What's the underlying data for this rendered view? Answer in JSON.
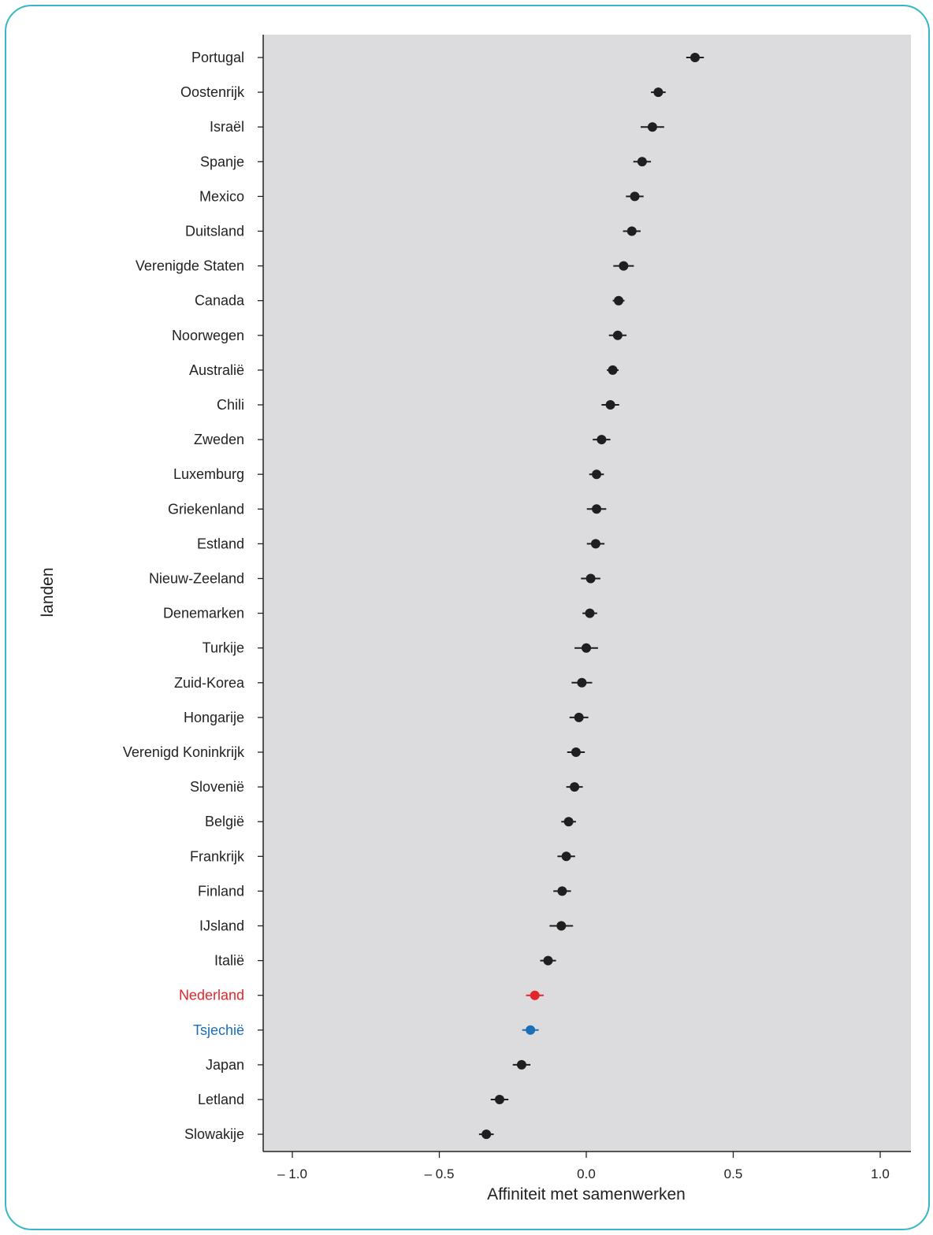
{
  "chart_data": {
    "type": "dot-errorbar",
    "title": "",
    "xlabel": "Affiniteit met samenwerken",
    "ylabel": "landen",
    "xlim": [
      -1.1,
      1.1
    ],
    "x_ticks": [
      -1.0,
      -0.5,
      0.0,
      0.5,
      1.0
    ],
    "x_tick_labels": [
      "– 1.0",
      "– 0.5",
      "0.0",
      "0.5",
      "1.0"
    ],
    "grid": false,
    "background": "#dcdcde",
    "colors": {
      "default": "#1f1f1f",
      "highlight_red": "#e3262b",
      "highlight_blue": "#1a6fb6"
    },
    "points": [
      {
        "country": "Portugal",
        "value": 0.37,
        "err": 0.03,
        "color": "default"
      },
      {
        "country": "Oostenrijk",
        "value": 0.245,
        "err": 0.025,
        "color": "default"
      },
      {
        "country": "Israël",
        "value": 0.225,
        "err": 0.04,
        "color": "default"
      },
      {
        "country": "Spanje",
        "value": 0.19,
        "err": 0.03,
        "color": "default"
      },
      {
        "country": "Mexico",
        "value": 0.165,
        "err": 0.03,
        "color": "default"
      },
      {
        "country": "Duitsland",
        "value": 0.155,
        "err": 0.03,
        "color": "default"
      },
      {
        "country": "Verenigde Staten",
        "value": 0.127,
        "err": 0.035,
        "color": "default"
      },
      {
        "country": "Canada",
        "value": 0.11,
        "err": 0.02,
        "color": "default"
      },
      {
        "country": "Noorwegen",
        "value": 0.107,
        "err": 0.03,
        "color": "default"
      },
      {
        "country": "Australië",
        "value": 0.09,
        "err": 0.02,
        "color": "default"
      },
      {
        "country": "Chili",
        "value": 0.082,
        "err": 0.03,
        "color": "default"
      },
      {
        "country": "Zweden",
        "value": 0.052,
        "err": 0.03,
        "color": "default"
      },
      {
        "country": "Luxemburg",
        "value": 0.035,
        "err": 0.025,
        "color": "default"
      },
      {
        "country": "Griekenland",
        "value": 0.035,
        "err": 0.033,
        "color": "default"
      },
      {
        "country": "Estland",
        "value": 0.032,
        "err": 0.03,
        "color": "default"
      },
      {
        "country": "Nieuw-Zeeland",
        "value": 0.015,
        "err": 0.033,
        "color": "default"
      },
      {
        "country": "Denemarken",
        "value": 0.012,
        "err": 0.025,
        "color": "default"
      },
      {
        "country": "Turkije",
        "value": 0.0,
        "err": 0.04,
        "color": "default"
      },
      {
        "country": "Zuid-Korea",
        "value": -0.015,
        "err": 0.035,
        "color": "default"
      },
      {
        "country": "Hongarije",
        "value": -0.025,
        "err": 0.032,
        "color": "default"
      },
      {
        "country": "Verenigd Koninkrijk",
        "value": -0.035,
        "err": 0.03,
        "color": "default"
      },
      {
        "country": "Slovenië",
        "value": -0.04,
        "err": 0.028,
        "color": "default"
      },
      {
        "country": "België",
        "value": -0.06,
        "err": 0.025,
        "color": "default"
      },
      {
        "country": "Frankrijk",
        "value": -0.068,
        "err": 0.03,
        "color": "default"
      },
      {
        "country": "Finland",
        "value": -0.082,
        "err": 0.03,
        "color": "default"
      },
      {
        "country": "IJsland",
        "value": -0.085,
        "err": 0.04,
        "color": "default"
      },
      {
        "country": "Italië",
        "value": -0.13,
        "err": 0.027,
        "color": "default"
      },
      {
        "country": "Nederland",
        "value": -0.175,
        "err": 0.03,
        "color": "highlight_red"
      },
      {
        "country": "Tsjechië",
        "value": -0.19,
        "err": 0.028,
        "color": "highlight_blue"
      },
      {
        "country": "Japan",
        "value": -0.22,
        "err": 0.03,
        "color": "default"
      },
      {
        "country": "Letland",
        "value": -0.295,
        "err": 0.03,
        "color": "default"
      },
      {
        "country": "Slowakije",
        "value": -0.34,
        "err": 0.025,
        "color": "default"
      }
    ]
  }
}
